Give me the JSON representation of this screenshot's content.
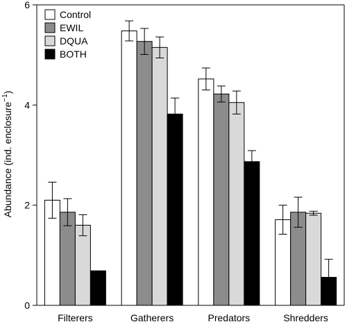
{
  "chart_data": {
    "type": "bar",
    "title": "",
    "xlabel": "",
    "ylabel": "Abundance (ind. enclosure",
    "ylabel_sup": "−1",
    "ylabel_close": ")",
    "ylim": [
      0,
      6
    ],
    "yticks": [
      "0",
      "2",
      "4",
      "6"
    ],
    "categories": [
      "Filterers",
      "Gatherers",
      "Predators",
      "Shredders"
    ],
    "legend_position": "top-left",
    "grid": false,
    "series": [
      {
        "name": "Control",
        "color": "#ffffff",
        "values": [
          2.1,
          5.48,
          4.52,
          1.71
        ],
        "errors": [
          0.36,
          0.2,
          0.22,
          0.29
        ]
      },
      {
        "name": "EWIL",
        "color": "#8c8c8c",
        "values": [
          1.86,
          5.27,
          4.22,
          1.86
        ],
        "errors": [
          0.27,
          0.26,
          0.16,
          0.3
        ]
      },
      {
        "name": "DQUA",
        "color": "#d9d9d9",
        "values": [
          1.6,
          5.15,
          4.05,
          1.84
        ],
        "errors": [
          0.21,
          0.21,
          0.23,
          0.04
        ]
      },
      {
        "name": "BOTH",
        "color": "#000000",
        "values": [
          0.69,
          3.82,
          2.87,
          0.56
        ],
        "errors": [
          0.0,
          0.32,
          0.22,
          0.36
        ]
      }
    ]
  }
}
